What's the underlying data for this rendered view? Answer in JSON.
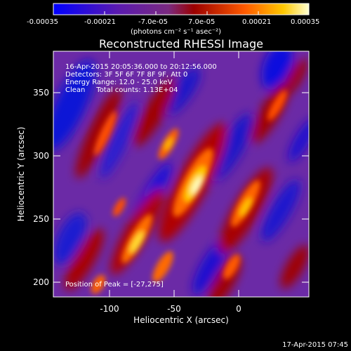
{
  "colorbar": {
    "ticks": [
      "-0.00035",
      "-0.00021",
      "-7.0e-05",
      "7.0e-05",
      "0.00021",
      "0.00035"
    ],
    "units_line": "(photons cm⁻² s⁻¹ asec⁻²)"
  },
  "title": "Reconstructed RHESSI Image",
  "info": {
    "time_range": "16-Apr-2015 20:05:36.000 to 20:12:56.000",
    "detectors": "Detectors: 3F 5F 6F 7F 8F 9F, Att 0",
    "energy_range": "Energy Range: 12.0 - 25.0 keV",
    "method_counts": "Clean     Total counts: 1.13E+04"
  },
  "peak_label": "Position of Peak = [-27,275]",
  "axes": {
    "xlabel": "Heliocentric X (arcsec)",
    "ylabel": "Heliocentric Y (arcsec)",
    "x_ticks": [
      "-100",
      "-50",
      "0"
    ],
    "y_ticks": [
      "350",
      "300",
      "250",
      "200"
    ]
  },
  "timestamp": "17-Apr-2015 07:45"
}
